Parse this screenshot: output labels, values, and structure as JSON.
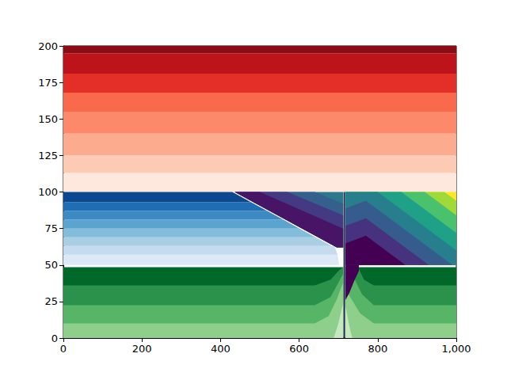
{
  "chart_data": {
    "type": "filled_contour",
    "xlim": [
      0,
      1000
    ],
    "ylim": [
      0,
      200
    ],
    "xticks": [
      0,
      200,
      400,
      600,
      800,
      1000
    ],
    "yticks": [
      0,
      25,
      50,
      75,
      100,
      125,
      150,
      175,
      200
    ],
    "regions": [
      {
        "color": "#fee7dc",
        "polygon": [
          [
            0,
            100
          ],
          [
            1000,
            100
          ],
          [
            1000,
            113
          ],
          [
            0,
            113
          ]
        ]
      },
      {
        "color": "#fdcab5",
        "polygon": [
          [
            0,
            113
          ],
          [
            1000,
            113
          ],
          [
            1000,
            125
          ],
          [
            0,
            125
          ]
        ]
      },
      {
        "color": "#fcab8f",
        "polygon": [
          [
            0,
            125
          ],
          [
            1000,
            125
          ],
          [
            1000,
            140
          ],
          [
            0,
            140
          ]
        ]
      },
      {
        "color": "#fc8a6a",
        "polygon": [
          [
            0,
            140
          ],
          [
            1000,
            140
          ],
          [
            1000,
            155
          ],
          [
            0,
            155
          ]
        ]
      },
      {
        "color": "#f9694c",
        "polygon": [
          [
            0,
            155
          ],
          [
            1000,
            155
          ],
          [
            1000,
            168
          ],
          [
            0,
            168
          ]
        ]
      },
      {
        "color": "#e32f27",
        "polygon": [
          [
            0,
            168
          ],
          [
            1000,
            168
          ],
          [
            1000,
            181
          ],
          [
            0,
            181
          ]
        ]
      },
      {
        "color": "#bc141a",
        "polygon": [
          [
            0,
            181
          ],
          [
            1000,
            181
          ],
          [
            1000,
            195
          ],
          [
            0,
            195
          ]
        ]
      },
      {
        "color": "#8a0c14",
        "polygon": [
          [
            0,
            195
          ],
          [
            1000,
            195
          ],
          [
            1000,
            200
          ],
          [
            0,
            200
          ]
        ]
      },
      {
        "color": "#dbe9f6",
        "polygon": [
          [
            0,
            50
          ],
          [
            702,
            50
          ],
          [
            698,
            57
          ],
          [
            0,
            57
          ]
        ]
      },
      {
        "color": "#c6dbef",
        "polygon": [
          [
            0,
            57
          ],
          [
            698,
            57
          ],
          [
            690,
            63
          ],
          [
            0,
            63
          ]
        ]
      },
      {
        "color": "#a9cfe5",
        "polygon": [
          [
            0,
            63
          ],
          [
            683,
            63
          ],
          [
            642,
            69
          ],
          [
            0,
            69
          ]
        ]
      },
      {
        "color": "#84bcdb",
        "polygon": [
          [
            0,
            69
          ],
          [
            642,
            69
          ],
          [
            601,
            75
          ],
          [
            0,
            75
          ]
        ]
      },
      {
        "color": "#5ca4d0",
        "polygon": [
          [
            0,
            75
          ],
          [
            601,
            75
          ],
          [
            560,
            81
          ],
          [
            0,
            81
          ]
        ]
      },
      {
        "color": "#3b8bc2",
        "polygon": [
          [
            0,
            81
          ],
          [
            560,
            81
          ],
          [
            519,
            87
          ],
          [
            0,
            87
          ]
        ]
      },
      {
        "color": "#1f6eb3",
        "polygon": [
          [
            0,
            87
          ],
          [
            519,
            87
          ],
          [
            478,
            93
          ],
          [
            0,
            93
          ]
        ]
      },
      {
        "color": "#0b4890",
        "polygon": [
          [
            0,
            93
          ],
          [
            478,
            93
          ],
          [
            430,
            100
          ],
          [
            0,
            100
          ]
        ]
      },
      {
        "color": "#2a788e",
        "polygon": [
          [
            436,
            100
          ],
          [
            712,
            100
          ],
          [
            712,
            62
          ],
          [
            696,
            62
          ]
        ]
      },
      {
        "color": "#355f8d",
        "polygon": [
          [
            436,
            100
          ],
          [
            640,
            100
          ],
          [
            712,
            92
          ],
          [
            712,
            62
          ],
          [
            696,
            62
          ]
        ]
      },
      {
        "color": "#443983",
        "polygon": [
          [
            436,
            100
          ],
          [
            570,
            100
          ],
          [
            712,
            84
          ],
          [
            712,
            62
          ],
          [
            696,
            62
          ]
        ]
      },
      {
        "color": "#471466",
        "polygon": [
          [
            436,
            100
          ],
          [
            500,
            100
          ],
          [
            712,
            75
          ],
          [
            712,
            62
          ],
          [
            696,
            62
          ]
        ]
      },
      {
        "color": "#00692a",
        "polygon": [
          [
            0,
            0
          ],
          [
            0,
            48.5
          ],
          [
            712,
            48.5
          ],
          [
            712,
            0
          ]
        ]
      },
      {
        "color": "#2a924a",
        "polygon": [
          [
            0,
            0
          ],
          [
            0,
            36
          ],
          [
            640,
            36
          ],
          [
            680,
            40
          ],
          [
            700,
            46
          ],
          [
            712,
            48.5
          ],
          [
            712,
            0
          ]
        ]
      },
      {
        "color": "#57b568",
        "polygon": [
          [
            0,
            0
          ],
          [
            0,
            22.5
          ],
          [
            640,
            22.5
          ],
          [
            680,
            28
          ],
          [
            700,
            38
          ],
          [
            712,
            44
          ],
          [
            712,
            0
          ]
        ]
      },
      {
        "color": "#8ed08b",
        "polygon": [
          [
            0,
            0
          ],
          [
            0,
            10
          ],
          [
            640,
            10
          ],
          [
            675,
            15
          ],
          [
            695,
            26
          ],
          [
            712,
            38
          ],
          [
            712,
            0
          ]
        ]
      },
      {
        "color": "#c6e8bf",
        "polygon": [
          [
            688,
            0
          ],
          [
            700,
            10
          ],
          [
            712,
            24
          ],
          [
            712,
            0
          ]
        ]
      },
      {
        "color": "#00692a",
        "polygon": [
          [
            718,
            0
          ],
          [
            718,
            48.5
          ],
          [
            1000,
            48.5
          ],
          [
            1000,
            0
          ]
        ]
      },
      {
        "color": "#2a924a",
        "polygon": [
          [
            1000,
            0
          ],
          [
            1000,
            36
          ],
          [
            790,
            36
          ],
          [
            765,
            40
          ],
          [
            750,
            48.5
          ],
          [
            718,
            48.5
          ],
          [
            718,
            0
          ]
        ]
      },
      {
        "color": "#57b568",
        "polygon": [
          [
            1000,
            0
          ],
          [
            1000,
            22.5
          ],
          [
            790,
            22.5
          ],
          [
            760,
            30
          ],
          [
            738,
            42
          ],
          [
            718,
            48.5
          ],
          [
            718,
            0
          ]
        ]
      },
      {
        "color": "#8ed08b",
        "polygon": [
          [
            1000,
            0
          ],
          [
            1000,
            10
          ],
          [
            790,
            10
          ],
          [
            755,
            17
          ],
          [
            730,
            28
          ],
          [
            718,
            34
          ],
          [
            718,
            0
          ]
        ]
      },
      {
        "color": "#c6e8bf",
        "polygon": [
          [
            718,
            0
          ],
          [
            718,
            22
          ],
          [
            728,
            8
          ],
          [
            735,
            0
          ]
        ]
      },
      {
        "color": "#fde725",
        "polygon": [
          [
            718,
            50
          ],
          [
            718,
            100
          ],
          [
            1000,
            100
          ],
          [
            1000,
            50
          ]
        ]
      },
      {
        "color": "#a0da39",
        "polygon": [
          [
            718,
            50
          ],
          [
            718,
            100
          ],
          [
            970,
            100
          ],
          [
            1000,
            94
          ],
          [
            1000,
            50
          ]
        ]
      },
      {
        "color": "#4ac16d",
        "polygon": [
          [
            718,
            50
          ],
          [
            718,
            100
          ],
          [
            920,
            100
          ],
          [
            1000,
            84
          ],
          [
            1000,
            50
          ]
        ]
      },
      {
        "color": "#1fa187",
        "polygon": [
          [
            718,
            50
          ],
          [
            718,
            100
          ],
          [
            860,
            100
          ],
          [
            1000,
            72
          ],
          [
            1000,
            50
          ]
        ]
      },
      {
        "color": "#277f8e",
        "polygon": [
          [
            718,
            50
          ],
          [
            718,
            100
          ],
          [
            800,
            100
          ],
          [
            1000,
            60
          ],
          [
            1000,
            50
          ]
        ]
      },
      {
        "color": "#365c8d",
        "polygon": [
          [
            718,
            50
          ],
          [
            718,
            88.8
          ],
          [
            770,
            94
          ],
          [
            990,
            50
          ]
        ]
      },
      {
        "color": "#46327e",
        "polygon": [
          [
            718,
            50
          ],
          [
            718,
            76.8
          ],
          [
            770,
            82
          ],
          [
            930,
            50
          ]
        ]
      },
      {
        "color": "#440154",
        "polygon": [
          [
            718,
            50
          ],
          [
            718,
            64.8
          ],
          [
            770,
            70
          ],
          [
            870,
            50
          ]
        ]
      },
      {
        "color": "#440154",
        "polygon": [
          [
            718,
            26
          ],
          [
            718,
            50
          ],
          [
            752,
            50
          ],
          [
            752,
            46
          ],
          [
            740,
            39
          ],
          [
            728,
            31
          ]
        ]
      }
    ],
    "lines": [
      {
        "color": "#1c2a4a",
        "points": [
          [
            715,
            0
          ],
          [
            715,
            100
          ]
        ]
      }
    ]
  }
}
